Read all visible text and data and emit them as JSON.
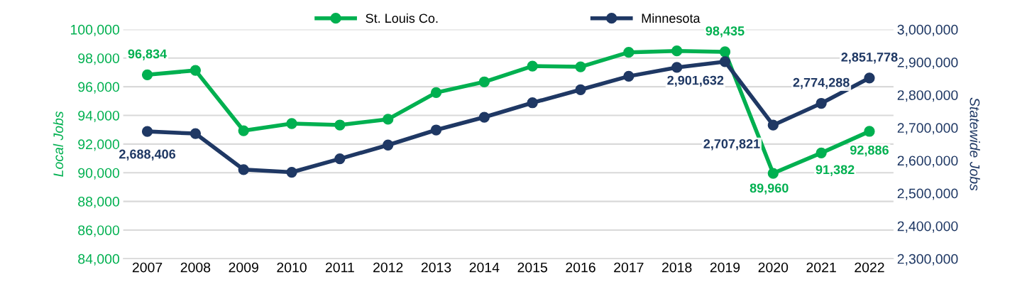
{
  "chart_data": {
    "type": "line",
    "ylabel": "Local Jobs",
    "y2label": "Statewide Jobs",
    "categories": [
      "2007",
      "2008",
      "2009",
      "2010",
      "2011",
      "2012",
      "2013",
      "2014",
      "2015",
      "2016",
      "2017",
      "2018",
      "2019",
      "2020",
      "2021",
      "2022"
    ],
    "series": [
      {
        "name": "St. Louis Co.",
        "color": "#00b050",
        "values": [
          96834,
          97140,
          92930,
          93430,
          93330,
          93730,
          95590,
          96340,
          97440,
          97390,
          98400,
          98500,
          98435,
          89960,
          91382,
          92886
        ],
        "value_labels": [
          "96,834",
          null,
          null,
          null,
          null,
          null,
          null,
          null,
          null,
          null,
          null,
          null,
          "98,435",
          "89,960",
          "91,382",
          "92,886"
        ]
      },
      {
        "name": "Minnesota",
        "color": "#1f3864",
        "axis": "y2",
        "values": [
          2688406,
          2682000,
          2572000,
          2564000,
          2605000,
          2647000,
          2693000,
          2732000,
          2776000,
          2816000,
          2857000,
          2884000,
          2901632,
          2707821,
          2774288,
          2851778
        ],
        "value_labels": [
          "2,688,406",
          null,
          null,
          null,
          null,
          null,
          null,
          null,
          null,
          null,
          null,
          null,
          "2,901,632",
          "2,707,821",
          "2,774,288",
          "2,851,778"
        ]
      }
    ],
    "ylim": [
      84000,
      100000
    ],
    "yticks": [
      {
        "value": 84000,
        "label": "84,000"
      },
      {
        "value": 86000,
        "label": "86,000"
      },
      {
        "value": 88000,
        "label": "88,000"
      },
      {
        "value": 90000,
        "label": "90,000"
      },
      {
        "value": 92000,
        "label": "92,000"
      },
      {
        "value": 94000,
        "label": "94,000"
      },
      {
        "value": 96000,
        "label": "96,000"
      },
      {
        "value": 98000,
        "label": "98,000"
      },
      {
        "value": 100000,
        "label": "100,000"
      }
    ],
    "y2lim": [
      2300000,
      3000000
    ],
    "y2ticks": [
      {
        "value": 2300000,
        "label": "2,300,000"
      },
      {
        "value": 2400000,
        "label": "2,400,000"
      },
      {
        "value": 2500000,
        "label": "2,500,000"
      },
      {
        "value": 2600000,
        "label": "2,600,000"
      },
      {
        "value": 2700000,
        "label": "2,700,000"
      },
      {
        "value": 2800000,
        "label": "2,800,000"
      },
      {
        "value": 2900000,
        "label": "2,900,000"
      },
      {
        "value": 3000000,
        "label": "3,000,000"
      }
    ],
    "grid": "y",
    "legend": "top",
    "marker": "circle",
    "line_style": "solid"
  }
}
